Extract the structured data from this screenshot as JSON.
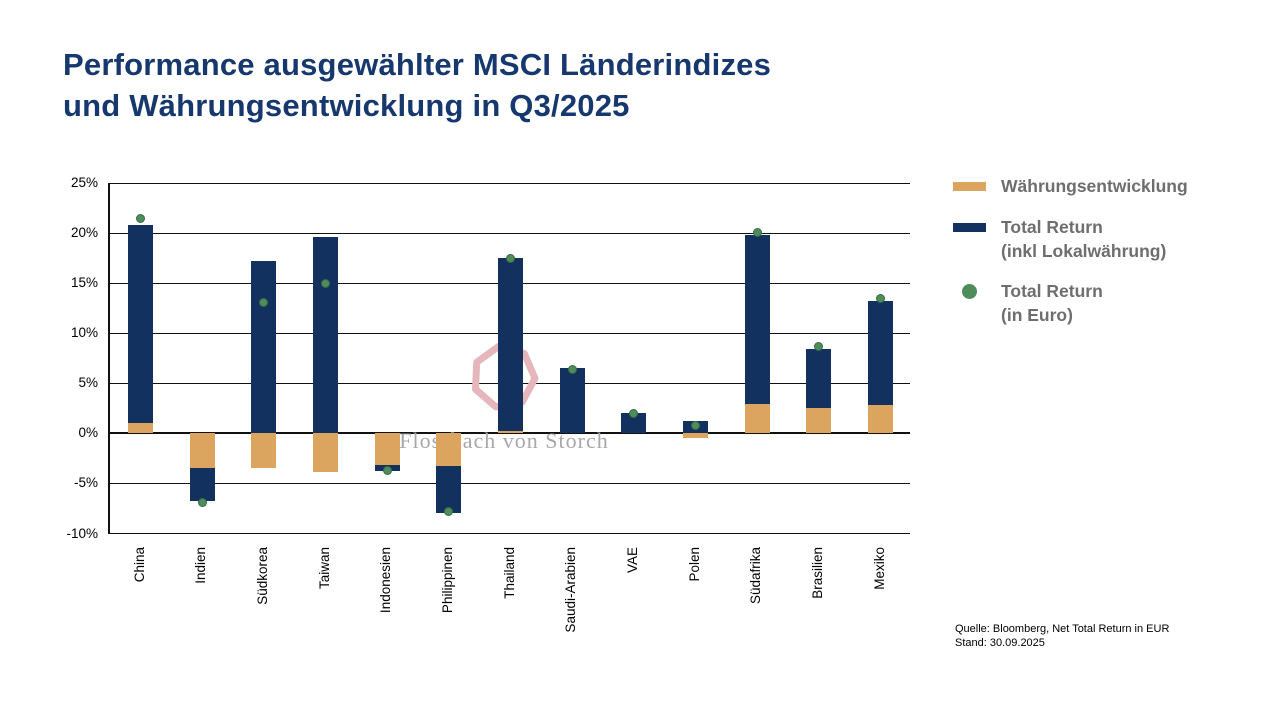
{
  "title": {
    "line1": "Performance ausgewählter MSCI Länderindizes",
    "line2": "und Währungsentwicklung in Q3/2025"
  },
  "legend": {
    "items": [
      {
        "line1": "Währungsentwicklung",
        "line2": "",
        "swatch": "bar",
        "color": "#DCA55F"
      },
      {
        "line1": "Total Return",
        "line2": "(inkl Lokalwährung)",
        "swatch": "bar",
        "color": "#12315E"
      },
      {
        "line1": "Total Return",
        "line2": "(in Euro)",
        "swatch": "dot",
        "color": "#4E8C5B"
      }
    ]
  },
  "source": {
    "line1": "Quelle: Bloomberg, Net Total Return in EUR",
    "line2": "Stand: 30.09.2025"
  },
  "watermark": {
    "text": "Flossbach von Storch",
    "ring_color": "#E5B6BB"
  },
  "colors": {
    "title": "#17386E",
    "currency_bar": "#DCA55F",
    "local_return_bar": "#12315E",
    "euro_return_dot": "#4E8C5B",
    "legend_text": "#6E6E6E",
    "axis": "#111111"
  },
  "chart_data": {
    "type": "bar",
    "stacked": true,
    "title": "Performance ausgewählter MSCI Länderindizes und Währungsentwicklung in Q3/2025",
    "categories": [
      "China",
      "Indien",
      "Südkorea",
      "Taiwan",
      "Indonesien",
      "Philippinen",
      "Thailand",
      "Saudi-Arabien",
      "VAE",
      "Polen",
      "Südafrika",
      "Brasilien",
      "Mexiko"
    ],
    "series": [
      {
        "name": "Währungsentwicklung",
        "type": "bar",
        "color": "#DCA55F",
        "values": [
          1.0,
          -3.5,
          -3.5,
          -3.9,
          -3.2,
          -3.3,
          0.2,
          0.0,
          0.0,
          -0.5,
          2.9,
          2.5,
          2.8
        ]
      },
      {
        "name": "Total Return (inkl Lokalwährung)",
        "type": "bar",
        "color": "#12315E",
        "values": [
          19.8,
          -3.3,
          17.2,
          19.6,
          -0.6,
          -4.7,
          17.3,
          6.5,
          2.0,
          1.2,
          16.9,
          5.9,
          10.4
        ]
      },
      {
        "name": "Total Return (in Euro)",
        "type": "scatter",
        "color": "#4E8C5B",
        "values": [
          21.5,
          -6.9,
          13.1,
          15.0,
          -3.7,
          -7.8,
          17.5,
          6.4,
          2.0,
          0.8,
          20.1,
          8.7,
          13.5
        ]
      }
    ],
    "unit": "%",
    "xlabel": "",
    "ylabel": "",
    "ylim": [
      -10,
      25
    ],
    "yticks": [
      25,
      20,
      15,
      10,
      5,
      0,
      -5,
      -10
    ],
    "grid": true,
    "legend_position": "right"
  }
}
